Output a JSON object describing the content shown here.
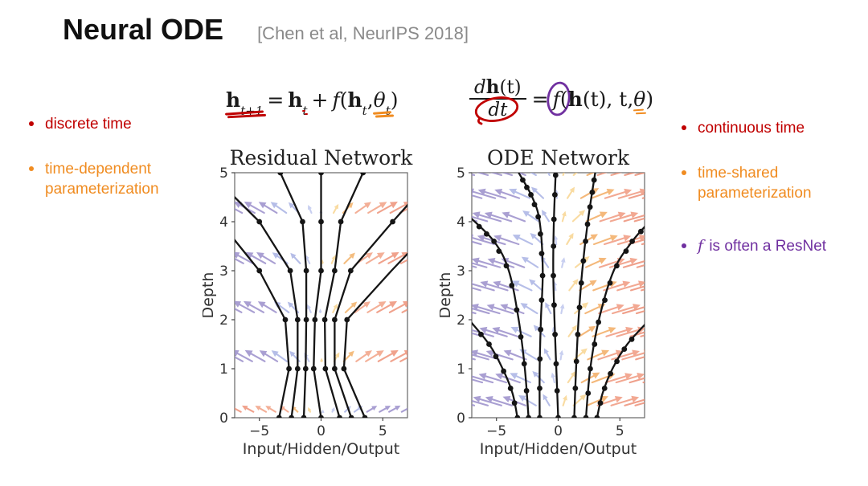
{
  "slide": {
    "title": "Neural ODE",
    "citation": "[Chen et al, NeurIPS 2018]"
  },
  "colors": {
    "red": "#C00000",
    "orange": "#F08C21",
    "purple": "#7030A0",
    "gray": "#8A8A8A",
    "ink": "#1A1A1A"
  },
  "bullets": {
    "left": [
      {
        "text": "discrete time",
        "color": "red"
      },
      {
        "text": "time-dependent parameterization",
        "color": "orange"
      }
    ],
    "right": [
      {
        "text": "continuous time",
        "color": "red"
      },
      {
        "text": "time-shared parameterization",
        "color": "orange"
      },
      {
        "prefix": "f",
        "text": " is often a ResNet",
        "color": "purple"
      }
    ]
  },
  "equations": {
    "left": {
      "h1": "h",
      "sub1": "t+1",
      "eq": "=",
      "h2": "h",
      "sub2": "t",
      "plus": "+",
      "f": "f",
      "open": "(",
      "h3": "h",
      "sub3": "t",
      "comma": ", ",
      "theta": "θ",
      "sub4": "t",
      "close": ")"
    },
    "right": {
      "num_d": "d",
      "num_h": "h",
      "num_t": "(t)",
      "den": "dt",
      "eq": "=",
      "f": "f",
      "open": "(",
      "h": "h",
      "mid": "(t), t, ",
      "theta": "θ",
      "close": ")"
    }
  },
  "chart_data": [
    {
      "type": "line",
      "title": "Residual Network",
      "xlabel": "Input/Hidden/Output",
      "ylabel": "Depth",
      "xlim": [
        -7,
        7
      ],
      "ylim": [
        0,
        5
      ],
      "xticks": [
        {
          "v": -5,
          "label": "−5"
        },
        {
          "v": 0,
          "label": "0"
        },
        {
          "v": 5,
          "label": "5"
        }
      ],
      "yticks": [
        {
          "v": 0,
          "label": "0"
        },
        {
          "v": 1,
          "label": "1"
        },
        {
          "v": 2,
          "label": "2"
        },
        {
          "v": 3,
          "label": "3"
        },
        {
          "v": 4,
          "label": "4"
        },
        {
          "v": 5,
          "label": "5"
        }
      ],
      "trajectory_style": "piecewise-linear",
      "trajectories": [
        {
          "points": [
            [
              -3.4,
              0
            ],
            [
              -2.6,
              1
            ],
            [
              -2.9,
              2
            ],
            [
              -5.0,
              3
            ],
            [
              -7.4,
              3.75
            ]
          ],
          "dots": [
            0,
            1,
            2,
            3
          ]
        },
        {
          "points": [
            [
              -2.4,
              0
            ],
            [
              -1.9,
              1
            ],
            [
              -1.9,
              2
            ],
            [
              -2.5,
              3
            ],
            [
              -5.0,
              4
            ],
            [
              -7.4,
              4.6
            ]
          ],
          "dots": [
            0,
            1,
            2,
            3,
            4
          ]
        },
        {
          "points": [
            [
              -1.4,
              0
            ],
            [
              -1.25,
              1
            ],
            [
              -1.2,
              2
            ],
            [
              -1.2,
              3
            ],
            [
              -1.5,
              4
            ],
            [
              -3.3,
              5
            ]
          ],
          "dots": [
            0,
            1,
            2,
            3,
            4,
            5
          ]
        },
        {
          "points": [
            [
              0,
              0
            ],
            [
              -0.6,
              1
            ],
            [
              -0.5,
              2
            ],
            [
              0,
              3
            ],
            [
              0,
              4
            ],
            [
              0,
              5
            ]
          ],
          "dots": [
            0,
            1,
            2,
            3,
            4,
            5
          ]
        },
        {
          "points": [
            [
              1.5,
              0
            ],
            [
              0.35,
              1
            ],
            [
              0.3,
              2
            ],
            [
              1.1,
              3
            ],
            [
              1.6,
              4
            ],
            [
              3.4,
              5
            ]
          ],
          "dots": [
            0,
            1,
            2,
            3,
            4,
            5
          ]
        },
        {
          "points": [
            [
              2.45,
              0
            ],
            [
              1.1,
              1
            ],
            [
              1.1,
              2
            ],
            [
              2.4,
              3
            ],
            [
              5.8,
              4
            ],
            [
              7.4,
              4.45
            ]
          ],
          "dots": [
            0,
            1,
            2,
            3,
            4
          ]
        },
        {
          "points": [
            [
              3.55,
              0
            ],
            [
              1.85,
              1
            ],
            [
              2.1,
              2
            ],
            [
              5.7,
              3
            ],
            [
              7.4,
              3.45
            ]
          ],
          "dots": [
            0,
            1,
            2
          ]
        }
      ],
      "vector_field": {
        "rows": [
          0.12,
          1.15,
          2.15,
          3.15,
          4.18
        ],
        "col_start": -6.4,
        "col_step": 0.92,
        "col_count": 15,
        "tilt_max": 62,
        "tilt_scale": 2.0,
        "len_base": 4,
        "len_scale": 27,
        "len_xscale": 3.0,
        "flip_colors_bottom_row": true,
        "zones": [
          {
            "max": -3.2,
            "color": "#9B8FCB"
          },
          {
            "max": -1.1,
            "color": "#A9B2E3"
          },
          {
            "max": 0.0,
            "color": "#BFC7EE"
          },
          {
            "max": 1.1,
            "color": "#F8D591"
          },
          {
            "max": 2.6,
            "color": "#F3B26A"
          },
          {
            "max": 4.5,
            "color": "#F1A285"
          },
          {
            "max": 99,
            "color": "#EE9279"
          }
        ]
      }
    },
    {
      "type": "line",
      "title": "ODE Network",
      "xlabel": "Input/Hidden/Output",
      "ylabel": "Depth",
      "xlim": [
        -7,
        7
      ],
      "ylim": [
        0,
        5
      ],
      "xticks": [
        {
          "v": -5,
          "label": "−5"
        },
        {
          "v": 0,
          "label": "0"
        },
        {
          "v": 5,
          "label": "5"
        }
      ],
      "yticks": [
        {
          "v": 0,
          "label": "0"
        },
        {
          "v": 1,
          "label": "1"
        },
        {
          "v": 2,
          "label": "2"
        },
        {
          "v": 3,
          "label": "3"
        },
        {
          "v": 4,
          "label": "4"
        },
        {
          "v": 5,
          "label": "5"
        }
      ],
      "trajectory_style": "smooth",
      "trajectories": [
        {
          "points": [
            [
              -3.3,
              0
            ],
            [
              -3.7,
              0.5
            ],
            [
              -4.5,
              1
            ],
            [
              -5.6,
              1.5
            ],
            [
              -7.4,
              2.05
            ]
          ],
          "dots": [
            0,
            0.3,
            0.6,
            0.95,
            1.25,
            1.5,
            1.7
          ]
        },
        {
          "points": [
            [
              -2.4,
              0
            ],
            [
              -2.7,
              1
            ],
            [
              -3.2,
              2
            ],
            [
              -4.0,
              3
            ],
            [
              -5.2,
              3.6
            ],
            [
              -7.4,
              4.15
            ]
          ],
          "dots": [
            0,
            0.55,
            1.1,
            1.65,
            2.2,
            2.7,
            3.1,
            3.4,
            3.6,
            3.75,
            3.9
          ]
        },
        {
          "points": [
            [
              -1.5,
              0
            ],
            [
              -1.5,
              1
            ],
            [
              -1.4,
              2
            ],
            [
              -1.25,
              3
            ],
            [
              -1.5,
              4
            ],
            [
              -2.1,
              4.5
            ],
            [
              -3.2,
              5
            ]
          ],
          "dots": [
            0,
            0.6,
            1.2,
            1.8,
            2.4,
            2.9,
            3.35,
            3.75,
            4.1,
            4.35,
            4.55,
            4.7,
            4.85
          ]
        },
        {
          "points": [
            [
              0,
              0
            ],
            [
              -0.15,
              1
            ],
            [
              -0.3,
              2
            ],
            [
              -0.4,
              3
            ],
            [
              -0.35,
              4
            ],
            [
              -0.2,
              5
            ]
          ],
          "dots": [
            0,
            0.55,
            1.1,
            1.7,
            2.3,
            2.9,
            3.5,
            4.05,
            4.55,
            4.95
          ]
        },
        {
          "points": [
            [
              1.3,
              0
            ],
            [
              1.45,
              1
            ],
            [
              1.65,
              2
            ],
            [
              1.95,
              3
            ],
            [
              2.4,
              4
            ],
            [
              3.0,
              5
            ]
          ],
          "dots": [
            0,
            0.6,
            1.15,
            1.7,
            2.25,
            2.75,
            3.2,
            3.6,
            3.95,
            4.3,
            4.6,
            4.85
          ]
        },
        {
          "points": [
            [
              2.25,
              0
            ],
            [
              2.6,
              1
            ],
            [
              3.3,
              2
            ],
            [
              4.5,
              3
            ],
            [
              6.0,
              3.6
            ],
            [
              7.4,
              4.0
            ]
          ],
          "dots": [
            0,
            0.5,
            1.0,
            1.5,
            1.95,
            2.4,
            2.75,
            3.1,
            3.4,
            3.6,
            3.8
          ]
        },
        {
          "points": [
            [
              3.15,
              0
            ],
            [
              3.6,
              0.5
            ],
            [
              4.4,
              1
            ],
            [
              5.6,
              1.5
            ],
            [
              7.4,
              2.0
            ]
          ],
          "dots": [
            0,
            0.3,
            0.6,
            0.9,
            1.15,
            1.4,
            1.6
          ]
        }
      ],
      "vector_field": {
        "row_start": 0.25,
        "row_step": 0.47,
        "row_count": 11,
        "col_start": -6.7,
        "col_step": 1.0,
        "col_count": 15,
        "stagger": 0.5,
        "tilt_max": 74,
        "tilt_scale": 1.6,
        "len_base": 10,
        "len_scale": 30,
        "len_xscale": 3.2,
        "flip_colors_bottom_row": false,
        "zones": [
          {
            "max": -2.5,
            "color": "#9B8FCB"
          },
          {
            "max": -0.6,
            "color": "#AAB3E4"
          },
          {
            "max": 0.3,
            "color": "#BFC7EE"
          },
          {
            "max": 1.4,
            "color": "#F8D591"
          },
          {
            "max": 3.0,
            "color": "#F3AC63"
          },
          {
            "max": 5.2,
            "color": "#F09A80"
          },
          {
            "max": 99,
            "color": "#ED9077"
          }
        ]
      }
    }
  ]
}
